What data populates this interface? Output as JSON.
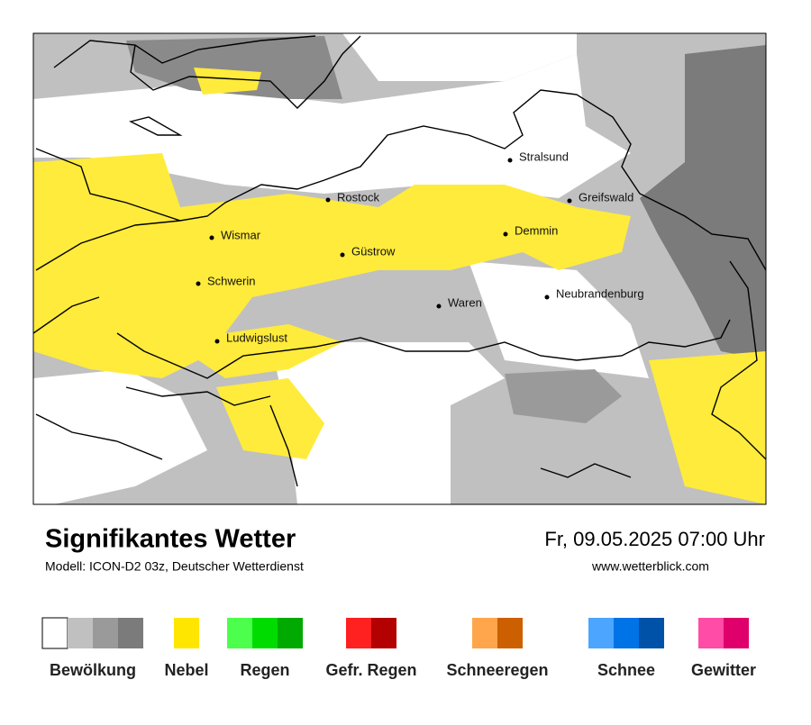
{
  "header": {
    "title": "Signifikantes Wetter",
    "subtitle": "Modell: ICON-D2 03z, Deutscher Wetterdienst",
    "datetime": "Fr, 09.05.2025 07:00 Uhr",
    "website": "www.wetterblick.com"
  },
  "cities": [
    "Stralsund",
    "Rostock",
    "Greifswald",
    "Wismar",
    "Demmin",
    "Güstrow",
    "Schwerin",
    "Neubrandenburg",
    "Waren",
    "Ludwigslust"
  ],
  "legend": [
    {
      "label": "Bewölkung",
      "colors": [
        "#ffffff",
        "#c0c0c0",
        "#9a9a9a",
        "#7b7b7b"
      ]
    },
    {
      "label": "Nebel",
      "colors": [
        "#ffe600"
      ]
    },
    {
      "label": "Regen",
      "colors": [
        "#4cff4c",
        "#00dc00",
        "#00aa00"
      ]
    },
    {
      "label": "Gefr. Regen",
      "colors": [
        "#ff2020",
        "#b30000"
      ]
    },
    {
      "label": "Schneeregen",
      "colors": [
        "#ffa64c",
        "#cc6000"
      ]
    },
    {
      "label": "Schnee",
      "colors": [
        "#4ca6ff",
        "#0073e6",
        "#0052a8"
      ]
    },
    {
      "label": "Gewitter",
      "colors": [
        "#ff4ca6",
        "#e0006c"
      ]
    }
  ]
}
